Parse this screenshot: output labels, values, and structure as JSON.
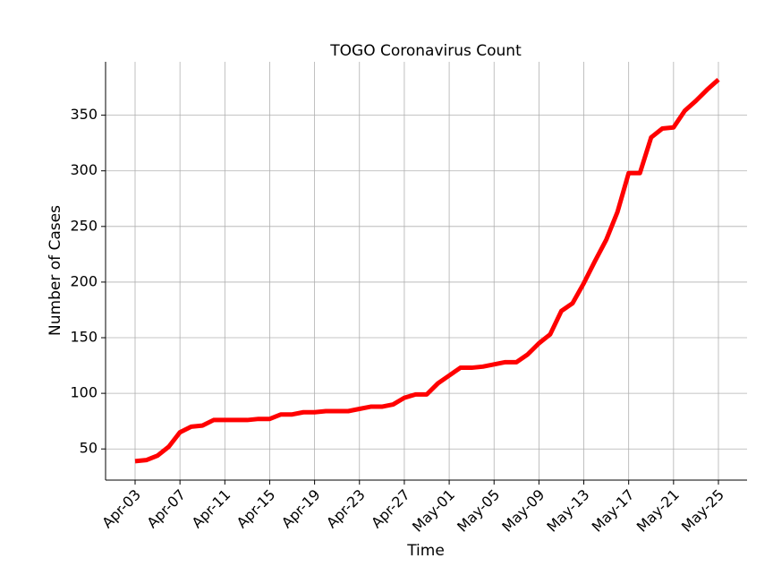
{
  "chart_data": {
    "type": "line",
    "title": "TOGO Coronavirus Count",
    "x_label": "Time",
    "y_label": "Number of Cases",
    "categories": [
      "Apr-03",
      null,
      null,
      null,
      "Apr-07",
      null,
      null,
      null,
      "Apr-11",
      null,
      null,
      null,
      "Apr-15",
      null,
      null,
      null,
      "Apr-19",
      null,
      null,
      null,
      "Apr-23",
      null,
      null,
      null,
      "Apr-27",
      null,
      null,
      null,
      "May-01",
      null,
      null,
      null,
      "May-05",
      null,
      null,
      null,
      "May-09",
      null,
      null,
      null,
      "May-13",
      null,
      null,
      null,
      "May-17",
      null,
      null,
      null,
      "May-21",
      null,
      null,
      null,
      "May-25"
    ],
    "values": [
      39,
      40,
      44,
      52,
      65,
      70,
      71,
      76,
      76,
      76,
      76,
      77,
      77,
      81,
      81,
      83,
      83,
      84,
      84,
      84,
      86,
      88,
      88,
      90,
      96,
      99,
      99,
      109,
      116,
      123,
      123,
      124,
      126,
      128,
      128,
      135,
      145,
      153,
      174,
      181,
      199,
      219,
      238,
      263,
      298,
      298,
      330,
      338,
      339,
      354,
      363,
      373,
      382
    ],
    "color": "#ff0000",
    "ylim": [
      22,
      398
    ],
    "yticks": [
      50,
      100,
      150,
      200,
      250,
      300,
      350
    ],
    "grid": true
  }
}
